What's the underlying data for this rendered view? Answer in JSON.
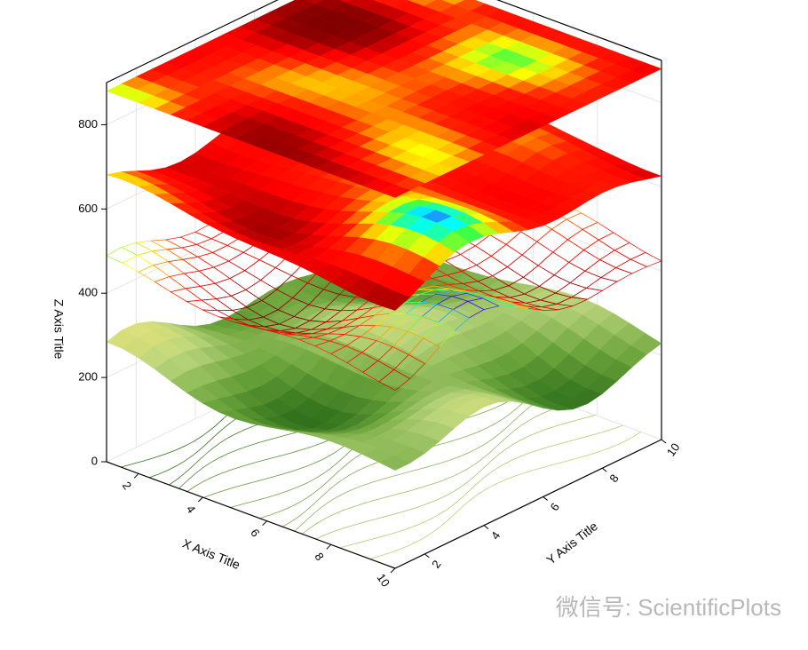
{
  "chart_data": {
    "type": "surface3d",
    "x_title": "X Axis Title",
    "y_title": "Y Axis Title",
    "z_title": "Z Axis Title",
    "xlim": [
      1,
      10
    ],
    "ylim": [
      1,
      10
    ],
    "zlim": [
      0,
      900
    ],
    "xticks": [
      2,
      4,
      6,
      8,
      10
    ],
    "yticks": [
      2,
      4,
      6,
      8,
      10
    ],
    "zticks": [
      0,
      200,
      400,
      600,
      800
    ],
    "layers": [
      {
        "z": 0,
        "style": "contour",
        "colors": [
          "#2d6e1a",
          "#b8d47a"
        ]
      },
      {
        "z": 230,
        "style": "surface",
        "colors": [
          "#2d6e1a",
          "#6aa33a",
          "#b8d47a",
          "#f5e97a",
          "#e08a2a"
        ]
      },
      {
        "z": 450,
        "style": "wireframe",
        "colors": [
          "#800000",
          "#ff0000",
          "#ff2000",
          "#ffa000",
          "#ffff00",
          "#40ff40",
          "#00ffff",
          "#4000ff"
        ]
      },
      {
        "z": 650,
        "style": "surface",
        "colors": [
          "#800000",
          "#ff0000",
          "#ff2000",
          "#ffa000",
          "#ffff00",
          "#40ff40",
          "#00ffff",
          "#4000ff"
        ]
      },
      {
        "z": 880,
        "style": "flat",
        "colors": [
          "#800000",
          "#ff0000",
          "#ff2000",
          "#ffa000",
          "#ffff00",
          "#40ff40",
          "#00ffff",
          "#4000ff"
        ]
      }
    ],
    "watermark": "微信号: ScientificPlots"
  }
}
